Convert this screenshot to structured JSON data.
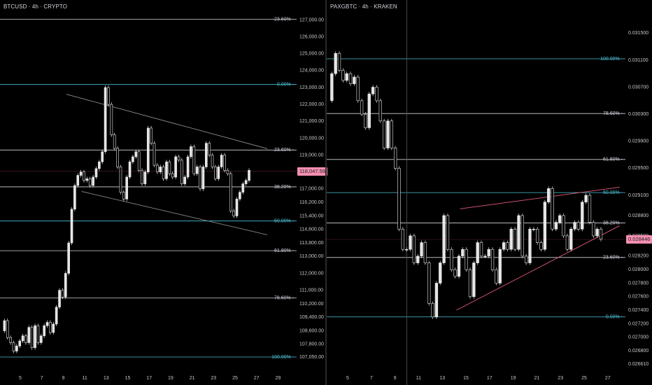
{
  "colors": {
    "background": "#000000",
    "fib_white": "#d1d4dc",
    "fib_cyan": "#4fc3d7",
    "trend": "#8a8a8a",
    "wedge": "#e05a7a",
    "candle": "#e6e6e6",
    "tag": "#f48fb1",
    "label": "#c8c8c8"
  },
  "chart_data": [
    {
      "type": "candlestick",
      "title": "BTCUSD · 4h · CRYPTO",
      "ylim": [
        106800,
        127600
      ],
      "x_ticks": [
        "5",
        "7",
        "9",
        "11",
        "13",
        "15",
        "17",
        "19",
        "21",
        "23",
        "25",
        "27",
        "29"
      ],
      "y_ticks": [
        127000,
        126000,
        125000,
        124000,
        123000,
        122000,
        121000,
        120000,
        119000,
        117000,
        116200,
        115400,
        114600,
        113800,
        113000,
        112000,
        111000,
        110200,
        109400,
        108600,
        107800,
        107050
      ],
      "y_tick_labels": [
        "127,000.00",
        "126,000.00",
        "125,000.00",
        "124,000.00",
        "123,000.00",
        "122,000.00",
        "121,000.00",
        "120,000.00",
        "119,000.00",
        "117,000.00",
        "116,200.00",
        "115,400.00",
        "114,600.00",
        "113,800.00",
        "113,000.00",
        "112,000.00",
        "111,000.00",
        "110,200.00",
        "109,400.00",
        "108,600.00",
        "107,800.00",
        "107,050.00"
      ],
      "current_price": 118047.59,
      "current_price_label": "118,047.59",
      "fib_levels": [
        {
          "label": "-23.60%",
          "value": 127040,
          "color": "white"
        },
        {
          "label": "0.00%",
          "value": 123180,
          "color": "cyan"
        },
        {
          "label": "23.60%",
          "value": 119300,
          "color": "white"
        },
        {
          "label": "38.20%",
          "value": 117120,
          "color": "white"
        },
        {
          "label": "50.00%",
          "value": 115100,
          "color": "cyan"
        },
        {
          "label": "61.80%",
          "value": 113340,
          "color": "white"
        },
        {
          "label": "78.60%",
          "value": 110540,
          "color": "white"
        },
        {
          "label": "100.00%",
          "value": 107050,
          "color": "cyan"
        }
      ],
      "trendlines": [
        {
          "from": [
            9.3,
            122600
          ],
          "to": [
            28.0,
            119380
          ]
        },
        {
          "from": [
            10.7,
            116850
          ],
          "to": [
            28.0,
            114280
          ]
        }
      ],
      "ohlc_trace": [
        108600,
        109200,
        108200,
        107900,
        107400,
        107700,
        108000,
        108300,
        107900,
        108800,
        107600,
        108900,
        107900,
        108300,
        108900,
        109100,
        108500,
        109000,
        110000,
        111000,
        110600,
        112000,
        113800,
        115800,
        117200,
        117800,
        118000,
        117500,
        117600,
        117200,
        117700,
        118200,
        118600,
        119200,
        123000,
        122000,
        120200,
        119400,
        118300,
        116800,
        116400,
        117700,
        118600,
        118900,
        119200,
        118100,
        117300,
        118000,
        120600,
        119700,
        118400,
        118000,
        118300,
        117600,
        118600,
        117900,
        117700,
        118900,
        118700,
        117300,
        117700,
        118900,
        119500,
        117900,
        118300,
        117000,
        118300,
        119700,
        119000,
        118300,
        117600,
        118300,
        119000,
        118100,
        117900,
        115700,
        115400,
        116400,
        116800,
        117300,
        117500,
        118100
      ]
    },
    {
      "type": "candlestick",
      "title": "PAXGBTC · 4h · KRAKEN",
      "ylim": [
        0.0265,
        0.0317
      ],
      "x_ticks": [
        "5",
        "7",
        "9",
        "11",
        "13",
        "15",
        "17",
        "19",
        "21",
        "23",
        "25",
        "27"
      ],
      "y_ticks": [
        0.0315,
        0.0311,
        0.0307,
        0.0303,
        0.0299,
        0.0295,
        0.0291,
        0.0288,
        0.0285,
        0.0282,
        0.028,
        0.0278,
        0.0276,
        0.0274,
        0.0272,
        0.027,
        0.0268,
        0.0266
      ],
      "y_tick_labels": [
        "0.031500",
        "0.031100",
        "0.030700",
        "0.030300",
        "0.029900",
        "0.029500",
        "0.029100",
        "0.028800",
        "0.028500",
        "0.028200",
        "0.028000",
        "0.027800",
        "0.027600",
        "0.027400",
        "0.027200",
        "0.027000",
        "0.026800",
        "0.026610"
      ],
      "current_price": 0.028446,
      "current_price_label": "0.028446",
      "fib_levels": [
        {
          "label": "100.00%",
          "value": 0.03112,
          "color": "cyan"
        },
        {
          "label": "78.60%",
          "value": 0.03031,
          "color": "white"
        },
        {
          "label": "61.80%",
          "value": 0.02963,
          "color": "white"
        },
        {
          "label": "50.00%",
          "value": 0.02914,
          "color": "cyan"
        },
        {
          "label": "38.20%",
          "value": 0.02869,
          "color": "white"
        },
        {
          "label": "23.60%",
          "value": 0.02818,
          "color": "white"
        },
        {
          "label": "0.00%",
          "value": 0.0273,
          "color": "cyan"
        }
      ],
      "trendlines": [
        {
          "from": [
            14.5,
            0.0289
          ],
          "to": [
            28.0,
            0.02922
          ]
        },
        {
          "from": [
            14.2,
            0.0274
          ],
          "to": [
            28.0,
            0.02865
          ]
        }
      ],
      "vertical_marker_x": 10.0,
      "ohlc_trace": [
        0.0305,
        0.0309,
        0.0312,
        0.03095,
        0.0308,
        0.0309,
        0.03075,
        0.03085,
        0.0305,
        0.0303,
        0.0301,
        0.0306,
        0.0307,
        0.0305,
        0.0302,
        0.0298,
        0.0302,
        0.0298,
        0.0295,
        0.0286,
        0.0283,
        0.0283,
        0.0285,
        0.0281,
        0.0282,
        0.0284,
        0.0281,
        0.0275,
        0.0273,
        0.0278,
        0.0281,
        0.0288,
        0.0283,
        0.028,
        0.0279,
        0.0282,
        0.0283,
        0.028,
        0.0276,
        0.0281,
        0.0284,
        0.0282,
        0.0282,
        0.0283,
        0.028,
        0.0278,
        0.0283,
        0.0284,
        0.0283,
        0.0286,
        0.0283,
        0.0288,
        0.0282,
        0.0281,
        0.0286,
        0.0286,
        0.0284,
        0.0283,
        0.029,
        0.0292,
        0.0286,
        0.0287,
        0.0288,
        0.0285,
        0.0283,
        0.0286,
        0.0287,
        0.0286,
        0.029,
        0.0291,
        0.0287,
        0.0285,
        0.0286,
        0.02845
      ]
    }
  ]
}
